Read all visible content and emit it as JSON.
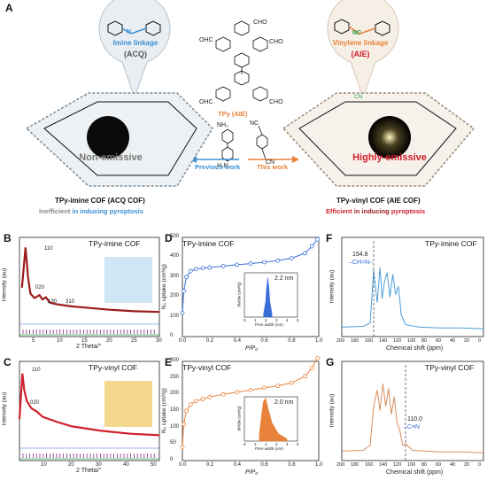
{
  "panel_a": {
    "letter": "A",
    "left_bubble": {
      "line1": "Imine linkage",
      "line2a": "(",
      "line2b": "ACQ",
      "line2c": ")",
      "n_label": "N"
    },
    "right_bubble": {
      "line1": "Vinylene linkage",
      "line2a": "(",
      "line2b": "AIE",
      "line2c": ")",
      "nc_label": "NC"
    },
    "monomer": {
      "cho": "CHO",
      "ohc": "OHC",
      "label": "TPy (AIE)"
    },
    "reagents": {
      "left": {
        "nh2": "NH₂",
        "h2n": "H₂N"
      },
      "right": {
        "nc": "NC",
        "cn": "CN"
      }
    },
    "arrows": {
      "left": "Previous work",
      "right": "This work"
    },
    "left_cof": {
      "state": "Non-emissive",
      "name": "TPy-imine COF (ACQ COF)",
      "desc_gray": "Inefficient",
      "desc_rest": "in inducing pyroptosis"
    },
    "right_cof": {
      "state": "Highly-emissive",
      "name": "TPy-vinyl COF (AIE COF)",
      "desc_red": "Efficient",
      "desc_rest": "in inducing",
      "desc_end": "pyroptosis"
    },
    "cn_tag": "CN"
  },
  "panel_b": {
    "letter": "B",
    "title": "TPy-imine COF",
    "peaks": [
      "110",
      "020",
      "130",
      "310"
    ]
  },
  "panel_c": {
    "letter": "C",
    "title": "TPy-vinyl COF",
    "peaks": [
      "110",
      "020"
    ]
  },
  "xrd_axis": {
    "ylabel": "Intensity (au)",
    "xlabel": "2 Theta/°",
    "xticks_b": [
      "5",
      "10",
      "15",
      "20",
      "25",
      "30"
    ],
    "xticks_c": [
      "10",
      "20",
      "30",
      "40",
      "50"
    ]
  },
  "panel_d": {
    "letter": "D",
    "title": "TPy-imine COF",
    "inset_value": "2.2 nm"
  },
  "panel_e": {
    "letter": "E",
    "title": "TPy-vinyl COF",
    "inset_value": "2.0 nm"
  },
  "bet_axis": {
    "ylabel": "N₂ uptake (cm³/g)",
    "xlabel": "P/P₀",
    "yticks_d": [
      "0",
      "100",
      "200",
      "300",
      "400",
      "500"
    ],
    "yticks_e": [
      "0",
      "50",
      "100",
      "150",
      "200",
      "250",
      "300"
    ],
    "xticks": [
      "0.0",
      "0.2",
      "0.4",
      "0.6",
      "0.8",
      "1.0"
    ],
    "inset_ylabel": "dV/dw (cm³/g)",
    "inset_xlabel": "Pore width (nm)",
    "inset_xticks": [
      "0",
      "1",
      "2",
      "3",
      "4",
      "5"
    ]
  },
  "panel_f": {
    "letter": "F",
    "title": "TPy-imine COF",
    "annot_value": "154.8",
    "annot_group": "–CH=N–"
  },
  "panel_g": {
    "letter": "G",
    "title": "TPy-vinyl COF",
    "annot_value": "110.0",
    "annot_group": "–C≡N"
  },
  "nmr_axis": {
    "ylabel": "Intensity (au)",
    "xlabel": "Chemical shift (ppm)",
    "xticks": [
      "200",
      "180",
      "160",
      "140",
      "120",
      "100",
      "80",
      "60",
      "40",
      "20",
      "0"
    ]
  },
  "colors": {
    "blue": "#4f9fd8",
    "orange": "#e8823a",
    "red": "#d0202a",
    "darkred": "#9b1b1b",
    "purple": "#8a2a8a"
  },
  "chart_data": [
    {
      "type": "line",
      "panel": "B",
      "title": "TPy-imine COF",
      "xlabel": "2 Theta/°",
      "ylabel": "Intensity (au)",
      "xlim": [
        2,
        30
      ],
      "x": [
        2.5,
        3.2,
        3.7,
        4.2,
        5,
        6,
        6.6,
        7.3,
        8,
        9,
        12,
        15,
        20,
        25,
        30
      ],
      "y": [
        0.4,
        0.95,
        0.55,
        0.32,
        0.26,
        0.3,
        0.24,
        0.27,
        0.2,
        0.18,
        0.15,
        0.13,
        0.1,
        0.08,
        0.07
      ],
      "peaks": [
        "110",
        "020",
        "130",
        "310"
      ]
    },
    {
      "type": "line",
      "panel": "C",
      "title": "TPy-vinyl COF",
      "xlabel": "2 Theta/°",
      "ylabel": "Intensity (au)",
      "xlim": [
        2,
        50
      ],
      "x": [
        2,
        3,
        3.6,
        4.5,
        6,
        8,
        10,
        15,
        20,
        30,
        40,
        50
      ],
      "y": [
        0.3,
        0.92,
        0.7,
        0.55,
        0.45,
        0.4,
        0.33,
        0.26,
        0.2,
        0.14,
        0.1,
        0.08
      ],
      "peaks": [
        "110",
        "020"
      ]
    },
    {
      "type": "scatter",
      "panel": "D",
      "title": "TPy-imine COF",
      "xlabel": "P/P₀",
      "ylabel": "N₂ uptake (cm³/g)",
      "xlim": [
        0,
        1
      ],
      "ylim": [
        0,
        500
      ],
      "x": [
        0.0,
        0.01,
        0.03,
        0.06,
        0.1,
        0.15,
        0.2,
        0.3,
        0.4,
        0.5,
        0.6,
        0.7,
        0.8,
        0.9,
        0.95,
        0.99
      ],
      "y": [
        120,
        230,
        300,
        330,
        340,
        345,
        348,
        355,
        362,
        368,
        375,
        383,
        395,
        420,
        455,
        490
      ],
      "inset": {
        "value": "2.2 nm",
        "x": [
          1.8,
          2.0,
          2.1,
          2.2,
          2.3,
          2.4,
          2.6
        ],
        "y": [
          50,
          250,
          500,
          640,
          500,
          250,
          50
        ]
      }
    },
    {
      "type": "scatter",
      "panel": "E",
      "title": "TPy-vinyl COF",
      "xlabel": "P/P₀",
      "ylabel": "N₂ uptake (cm³/g)",
      "xlim": [
        0,
        1
      ],
      "ylim": [
        0,
        300
      ],
      "x": [
        0.0,
        0.01,
        0.03,
        0.06,
        0.1,
        0.15,
        0.2,
        0.3,
        0.4,
        0.5,
        0.6,
        0.7,
        0.8,
        0.9,
        0.95,
        0.99
      ],
      "y": [
        40,
        110,
        150,
        170,
        180,
        186,
        192,
        200,
        207,
        213,
        220,
        226,
        235,
        255,
        280,
        310
      ],
      "inset": {
        "value": "2.0 nm",
        "x": [
          1.4,
          1.6,
          1.8,
          2.0,
          2.2,
          2.6,
          3.2,
          4
        ],
        "y": [
          100,
          400,
          650,
          700,
          550,
          300,
          120,
          40
        ]
      }
    },
    {
      "type": "line",
      "panel": "F",
      "title": "TPy-imine COF",
      "xlabel": "Chemical shift (ppm)",
      "ylabel": "Intensity (au)",
      "xlim": [
        200,
        0
      ],
      "x": [
        200,
        170,
        160,
        155,
        150,
        146,
        143,
        140,
        136,
        132,
        128,
        124,
        120,
        116,
        110,
        90,
        60,
        30,
        0
      ],
      "y": [
        0.05,
        0.06,
        0.1,
        0.75,
        0.35,
        0.78,
        0.4,
        0.6,
        0.72,
        0.42,
        0.7,
        0.45,
        0.55,
        0.2,
        0.08,
        0.05,
        0.04,
        0.04,
        0.03
      ]
    },
    {
      "type": "line",
      "panel": "G",
      "title": "TPy-vinyl COF",
      "xlabel": "Chemical shift (ppm)",
      "ylabel": "Intensity (au)",
      "xlim": [
        200,
        0
      ],
      "x": [
        200,
        170,
        160,
        155,
        150,
        146,
        142,
        138,
        134,
        130,
        126,
        122,
        118,
        114,
        110,
        100,
        80,
        60,
        30,
        0
      ],
      "y": [
        0.05,
        0.06,
        0.12,
        0.6,
        0.8,
        0.55,
        0.88,
        0.6,
        0.82,
        0.5,
        0.72,
        0.4,
        0.3,
        0.12,
        0.14,
        0.06,
        0.05,
        0.04,
        0.04,
        0.03
      ]
    }
  ]
}
